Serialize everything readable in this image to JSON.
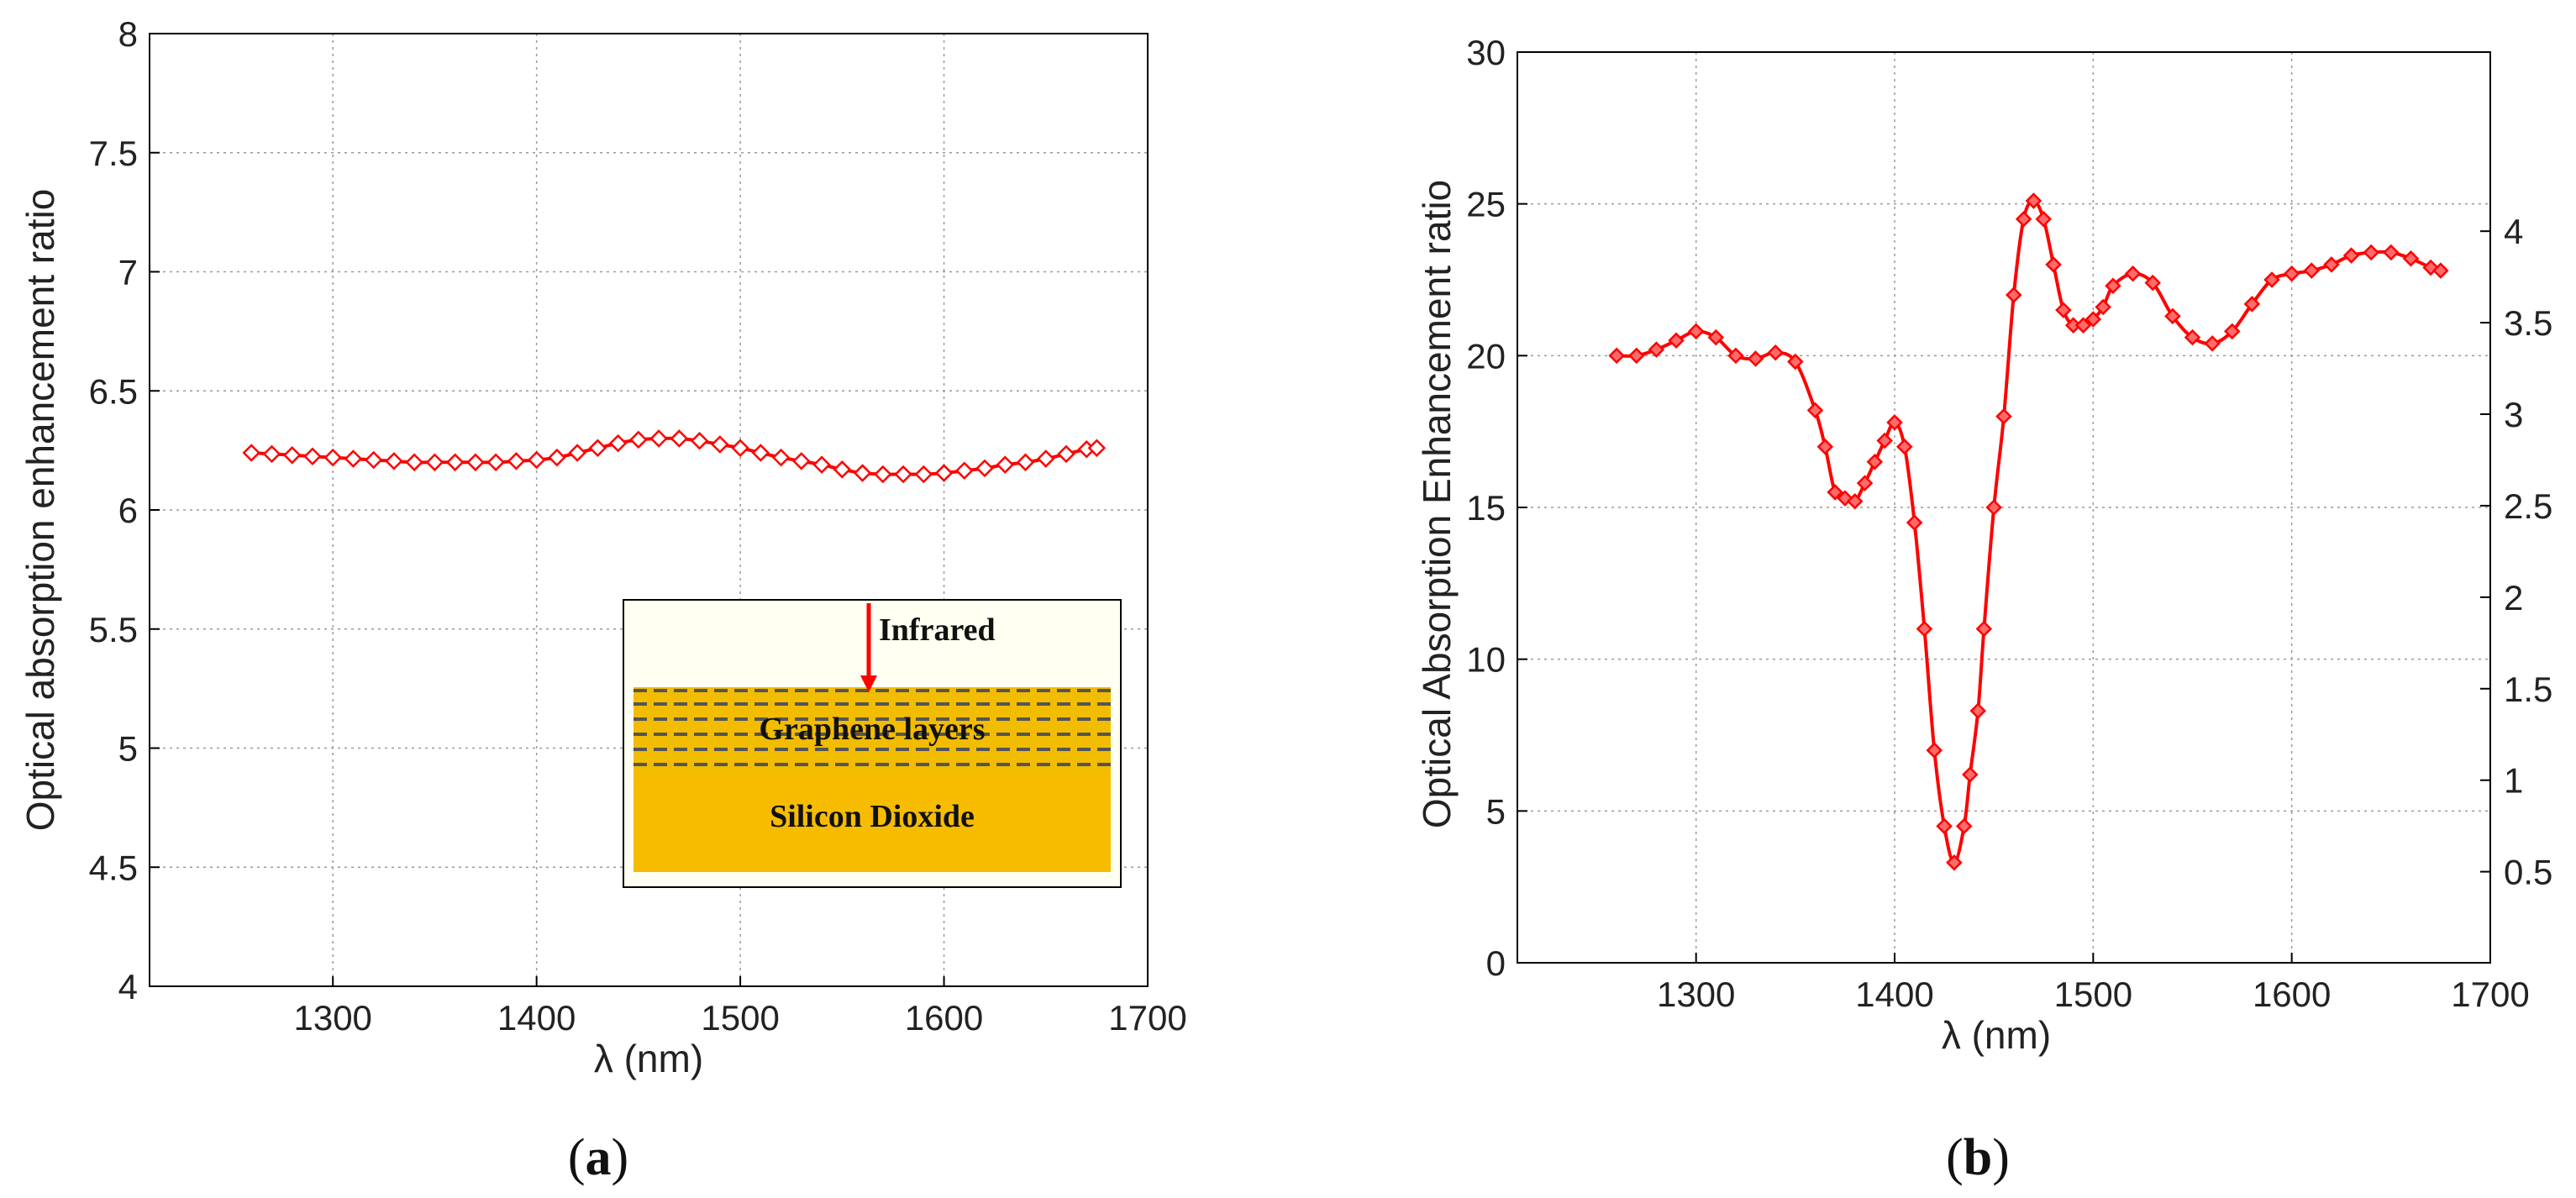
{
  "chart_data": [
    {
      "type": "line",
      "panel_label": "(a)",
      "panel_letter": "a",
      "xlabel": "λ (nm)",
      "ylabel": "Optical absorption enhancement ratio",
      "xlim": [
        1210,
        1700
      ],
      "ylim": [
        4,
        8
      ],
      "xticks": [
        1300,
        1400,
        1500,
        1600,
        1700
      ],
      "yticks": [
        4,
        4.5,
        5,
        5.5,
        6,
        6.5,
        7,
        7.5,
        8
      ],
      "grid": true,
      "color": "#ff0000",
      "marker": "diamond-open",
      "series": [
        {
          "name": "enhancement",
          "x": [
            1260,
            1270,
            1280,
            1290,
            1300,
            1310,
            1320,
            1330,
            1340,
            1350,
            1360,
            1370,
            1380,
            1390,
            1400,
            1410,
            1420,
            1430,
            1440,
            1450,
            1460,
            1470,
            1480,
            1490,
            1500,
            1510,
            1520,
            1530,
            1540,
            1550,
            1560,
            1570,
            1580,
            1590,
            1600,
            1610,
            1620,
            1630,
            1640,
            1650,
            1660,
            1670,
            1675
          ],
          "values": [
            6.24,
            6.235,
            6.23,
            6.225,
            6.22,
            6.215,
            6.21,
            6.205,
            6.2,
            6.2,
            6.2,
            6.2,
            6.2,
            6.205,
            6.21,
            6.22,
            6.24,
            6.26,
            6.28,
            6.295,
            6.3,
            6.3,
            6.29,
            6.275,
            6.26,
            6.24,
            6.22,
            6.205,
            6.19,
            6.17,
            6.155,
            6.15,
            6.15,
            6.15,
            6.155,
            6.165,
            6.175,
            6.19,
            6.2,
            6.215,
            6.235,
            6.255,
            6.26
          ]
        }
      ],
      "inset": {
        "arrow_label": "Infrared",
        "layer_label": "Graphene layers",
        "substrate_label": "Silicon Dioxide"
      }
    },
    {
      "type": "line",
      "panel_label": "(b)",
      "panel_letter": "b",
      "xlabel": "λ (nm)",
      "ylabel": "Optical Absorption Enhancement ratio",
      "xlim": [
        1210,
        1700
      ],
      "ylim": [
        0,
        30
      ],
      "xticks": [
        1300,
        1400,
        1500,
        1600,
        1700
      ],
      "yticks": [
        0,
        5,
        10,
        15,
        20,
        25,
        30
      ],
      "y2ticks": [
        "0.5",
        "1",
        "1.5",
        "2",
        "2.5",
        "3",
        "3.5",
        "4"
      ],
      "grid": true,
      "color": "#ff0000",
      "marker": "diamond",
      "series": [
        {
          "name": "enhancement",
          "x": [
            1260,
            1270,
            1280,
            1290,
            1300,
            1310,
            1320,
            1330,
            1340,
            1350,
            1360,
            1365,
            1370,
            1375,
            1380,
            1385,
            1390,
            1395,
            1400,
            1405,
            1410,
            1415,
            1420,
            1425,
            1430,
            1435,
            1438,
            1442,
            1445,
            1450,
            1455,
            1460,
            1465,
            1470,
            1475,
            1480,
            1485,
            1490,
            1495,
            1500,
            1505,
            1510,
            1520,
            1530,
            1540,
            1550,
            1560,
            1570,
            1580,
            1590,
            1600,
            1610,
            1620,
            1630,
            1640,
            1650,
            1660,
            1670,
            1675
          ],
          "values": [
            20.0,
            20.0,
            20.2,
            20.5,
            20.8,
            20.6,
            20.0,
            19.9,
            20.1,
            19.8,
            18.2,
            17.0,
            15.5,
            15.3,
            15.2,
            15.8,
            16.5,
            17.2,
            17.8,
            17.0,
            14.5,
            11.0,
            7.0,
            4.5,
            3.3,
            4.5,
            6.2,
            8.3,
            11.0,
            15.0,
            18.0,
            22.0,
            24.5,
            25.1,
            24.5,
            23.0,
            21.5,
            21.0,
            21.0,
            21.2,
            21.6,
            22.3,
            22.7,
            22.4,
            21.3,
            20.6,
            20.4,
            20.8,
            21.7,
            22.5,
            22.7,
            22.8,
            23.0,
            23.3,
            23.4,
            23.4,
            23.2,
            22.9,
            22.8
          ]
        }
      ]
    }
  ]
}
